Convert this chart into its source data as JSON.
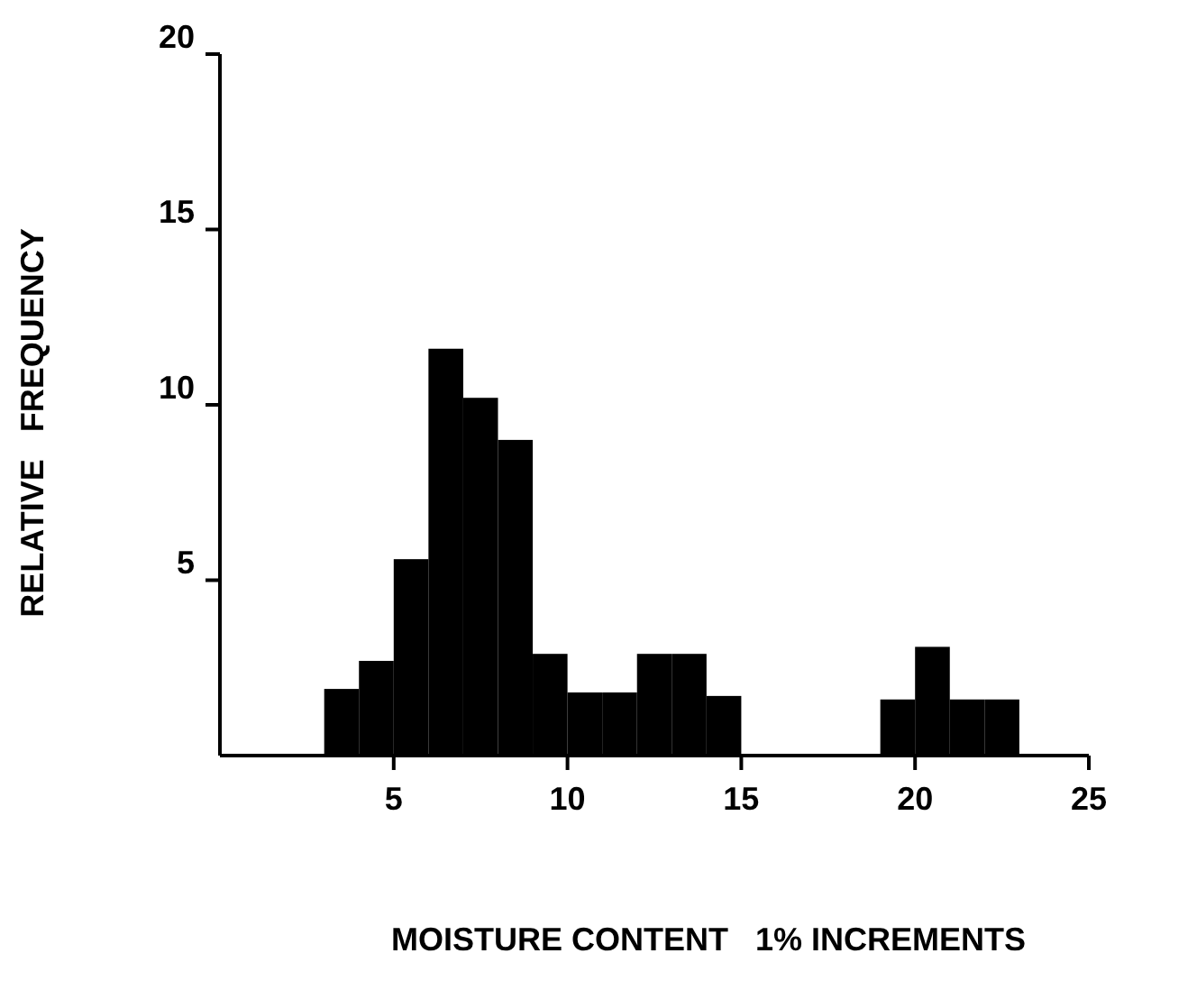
{
  "chart_data": {
    "type": "histogram",
    "xlabel": "MOISTURE CONTENT   1% INCREMENTS",
    "ylabel": "RELATIVE   FREQUENCY",
    "bins": [
      3,
      4,
      5,
      6,
      7,
      8,
      9,
      10,
      11,
      12,
      13,
      14,
      15,
      16,
      17,
      18,
      19,
      20,
      21,
      22,
      23
    ],
    "values": [
      1.9,
      2.7,
      5.6,
      11.6,
      10.2,
      9.0,
      2.9,
      1.8,
      1.8,
      2.9,
      2.9,
      1.7,
      0,
      0,
      0,
      0,
      1.6,
      3.1,
      1.6,
      1.6
    ],
    "color": "#000000",
    "xlim": [
      0,
      25
    ],
    "ylim": [
      0,
      20
    ],
    "xticks": [
      5,
      10,
      15,
      20,
      25
    ],
    "yticks": [
      5,
      10,
      15,
      20
    ],
    "grid": false
  }
}
